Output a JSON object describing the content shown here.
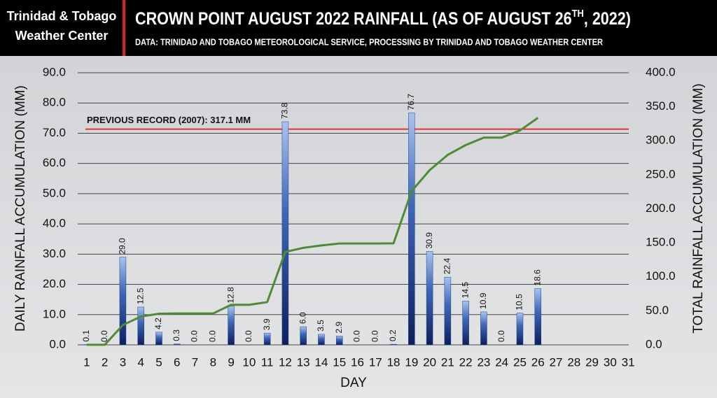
{
  "header": {
    "brand": [
      "Trinidad & Tobago",
      "Weather Center"
    ]
  },
  "chart_data": {
    "type": "bar",
    "title": [
      "CROWN POINT AUGUST 2022 RAINFALL (AS OF AUGUST 26",
      "TH",
      ", 2022)"
    ],
    "subtitle": "DATA: TRINIDAD AND TOBAGO METEOROLOGICAL SERVICE, PROCESSING BY TRINIDAD AND TOBAGO WEATHER CENTER",
    "xlabel": "DAY",
    "ylabel": "DAILY RAINFALL ACCUMULATION (MM)",
    "y2label": "TOTAL RAINFALL ACCUMULATION (MM)",
    "categories": [
      "1",
      "2",
      "3",
      "4",
      "5",
      "6",
      "7",
      "8",
      "9",
      "10",
      "11",
      "12",
      "13",
      "14",
      "15",
      "16",
      "17",
      "18",
      "19",
      "20",
      "21",
      "22",
      "23",
      "24",
      "25",
      "26",
      "27",
      "28",
      "29",
      "30",
      "31"
    ],
    "series": [
      {
        "type": "bar",
        "color": "#1f3f8a",
        "values": [
          0.1,
          0.0,
          29.0,
          12.5,
          4.2,
          0.3,
          0.0,
          0.0,
          12.8,
          0.0,
          3.9,
          73.8,
          6.0,
          3.5,
          2.9,
          0.0,
          0.0,
          0.2,
          76.7,
          30.9,
          22.4,
          14.5,
          10.9,
          0.0,
          10.5,
          18.6,
          null,
          null,
          null,
          null,
          null
        ],
        "value_labels": [
          "0.1",
          "0.0",
          "29.0",
          "12.5",
          "4.2",
          "0.3",
          "0.0",
          "0.0",
          "12.8",
          "0.0",
          "3.9",
          "73.8",
          "6.0",
          "3.5",
          "2.9",
          "0.0",
          "0.0",
          "0.2",
          "76.7",
          "30.9",
          "22.4",
          "14.5",
          "10.9",
          "0.0",
          "10.5",
          "18.6",
          null,
          null,
          null,
          null,
          null
        ]
      },
      {
        "type": "line",
        "axis": "y2",
        "color": "#4f8a34",
        "values": [
          0.1,
          0.1,
          29.1,
          41.6,
          45.8,
          46.1,
          46.1,
          46.1,
          58.9,
          58.9,
          62.8,
          136.6,
          142.6,
          146.1,
          149.0,
          149.0,
          149.0,
          149.2,
          225.9,
          256.8,
          279.2,
          293.7,
          304.6,
          304.6,
          315.1,
          333.7,
          null,
          null,
          null,
          null,
          null
        ]
      }
    ],
    "annotation": {
      "text": "PREVIOUS RECORD (2007): 317.1 MM",
      "value": 317.1,
      "axis": "y2",
      "color": "#e8312f"
    },
    "ylim": [
      0,
      90
    ],
    "yticks": [
      {
        "value": 0,
        "label": "0.0"
      },
      {
        "value": 10,
        "label": "10.0"
      },
      {
        "value": 20,
        "label": "20.0"
      },
      {
        "value": 30,
        "label": "30.0"
      },
      {
        "value": 40,
        "label": "40.0"
      },
      {
        "value": 50,
        "label": "50.0"
      },
      {
        "value": 60,
        "label": "60.0"
      },
      {
        "value": 70,
        "label": "70.0"
      },
      {
        "value": 80,
        "label": "80.0"
      },
      {
        "value": 90,
        "label": "90.0"
      }
    ],
    "y2lim": [
      0,
      400
    ],
    "y2ticks": [
      {
        "value": 0,
        "label": "0.0"
      },
      {
        "value": 50,
        "label": "50.0"
      },
      {
        "value": 100,
        "label": "100.0"
      },
      {
        "value": 150,
        "label": "150.0"
      },
      {
        "value": 200,
        "label": "200.0"
      },
      {
        "value": 250,
        "label": "250.0"
      },
      {
        "value": 300,
        "label": "300.0"
      },
      {
        "value": 350,
        "label": "350.0"
      },
      {
        "value": 400,
        "label": "400.0"
      }
    ],
    "grid": true
  }
}
